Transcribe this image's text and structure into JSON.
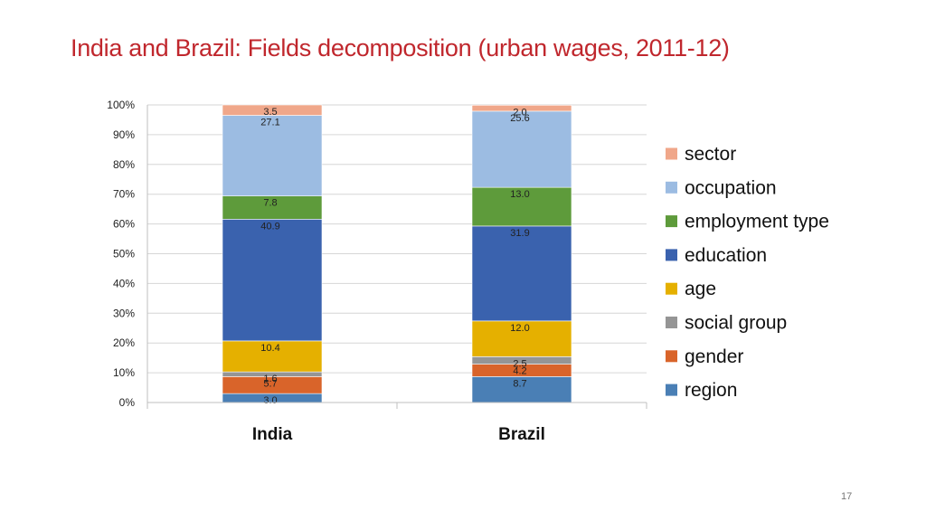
{
  "title": "India and Brazil: Fields decomposition (urban wages, 2011-12)",
  "page_number": "17",
  "chart_data": {
    "type": "bar",
    "stacked": true,
    "percent_stacked": true,
    "categories": [
      "India",
      "Brazil"
    ],
    "y_ticks": [
      "0%",
      "10%",
      "20%",
      "30%",
      "40%",
      "50%",
      "60%",
      "70%",
      "80%",
      "90%",
      "100%"
    ],
    "ylim": [
      0,
      100
    ],
    "grid": true,
    "legend_position": "right",
    "series": [
      {
        "name": "region",
        "color": "#4a7fb5",
        "values": [
          3.0,
          8.7
        ]
      },
      {
        "name": "gender",
        "color": "#d9642a",
        "values": [
          5.7,
          4.2
        ]
      },
      {
        "name": "social group",
        "color": "#959595",
        "values": [
          1.6,
          2.5
        ]
      },
      {
        "name": "age",
        "color": "#e5b000",
        "values": [
          10.4,
          12.0
        ]
      },
      {
        "name": "education",
        "color": "#3a62ae",
        "values": [
          40.9,
          31.9
        ]
      },
      {
        "name": "employment type",
        "color": "#5e9b3b",
        "values": [
          7.8,
          13.0
        ]
      },
      {
        "name": "occupation",
        "color": "#9cbce2",
        "values": [
          27.1,
          25.6
        ]
      },
      {
        "name": "sector",
        "color": "#f0a78a",
        "values": [
          3.5,
          2.0
        ]
      }
    ]
  }
}
